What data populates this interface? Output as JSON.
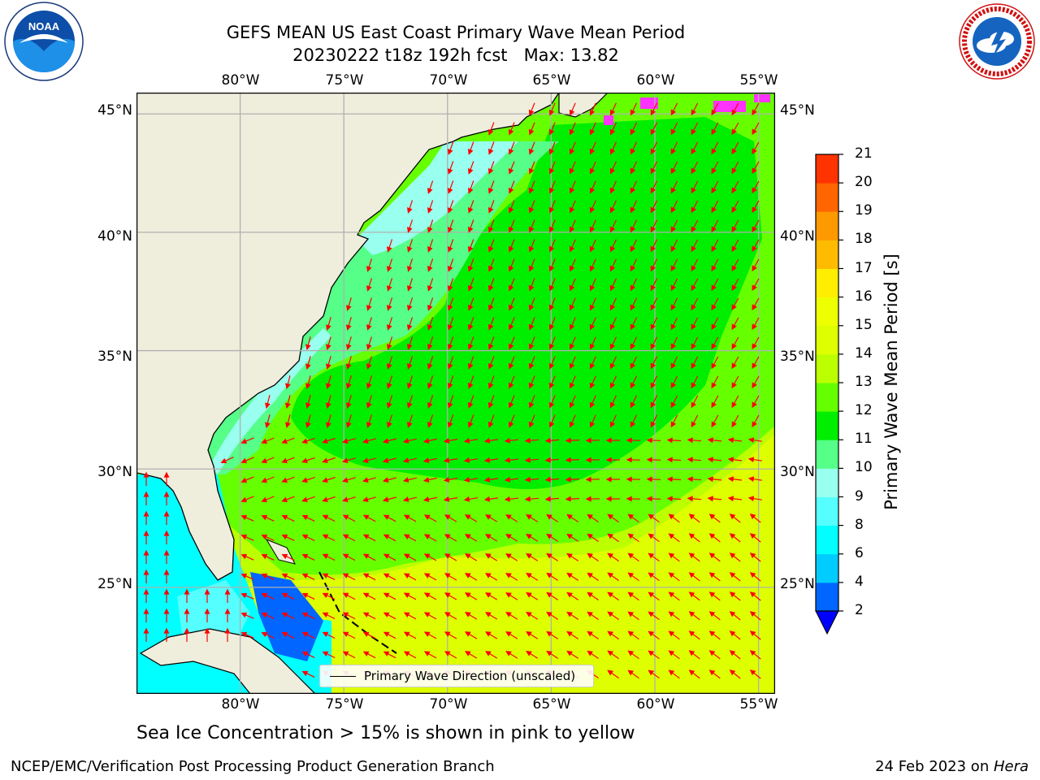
{
  "header": {
    "line1": "GEFS MEAN US East Coast Primary Wave Mean Period",
    "line2": "20230222 t18z 192h fcst   Max: 13.82"
  },
  "logos": {
    "left": "noaa-logo",
    "right": "nws-logo"
  },
  "map": {
    "lon_ticks": [
      "80°W",
      "75°W",
      "70°W",
      "65°W",
      "60°W",
      "55°W"
    ],
    "lat_ticks": [
      "45°N",
      "40°N",
      "35°N",
      "30°N",
      "25°N"
    ],
    "extent": {
      "lon_min": -85,
      "lon_max": -54.2,
      "lat_min": 20.5,
      "lat_max": 45.9
    },
    "colors": {
      "land": "#efeedd",
      "coast": "#000000",
      "arrows": "#ff0000",
      "grid": "#b0b0b0",
      "ice": "#ff33ff"
    },
    "legend_label": "Primary Wave Direction (unscaled)"
  },
  "colorbar": {
    "title": "Primary Wave Mean Period [s]",
    "ticks": [
      "21",
      "20",
      "19",
      "18",
      "17",
      "16",
      "15",
      "14",
      "13",
      "12",
      "11",
      "10",
      "9",
      "8",
      "6",
      "4",
      "2"
    ],
    "levels": [
      2,
      4,
      6,
      8,
      9,
      10,
      11,
      12,
      13,
      14,
      15,
      16,
      17,
      18,
      19,
      20,
      21
    ],
    "colors": [
      "#0066ff",
      "#00ccff",
      "#00ffff",
      "#55ffff",
      "#99ffee",
      "#55ff88",
      "#00ee00",
      "#66ff00",
      "#bbff00",
      "#ddff00",
      "#eeff00",
      "#ffee00",
      "#ffbb00",
      "#ff9900",
      "#ff6600",
      "#ff3300"
    ],
    "under_color": "#0000ff"
  },
  "footer": {
    "subtitle": "Sea Ice Concentration > 15% is shown in pink to yellow",
    "left": "NCEP/EMC/Verification Post Processing Product Generation Branch",
    "right_date": "24 Feb 2023 on ",
    "right_host": "Hera"
  }
}
